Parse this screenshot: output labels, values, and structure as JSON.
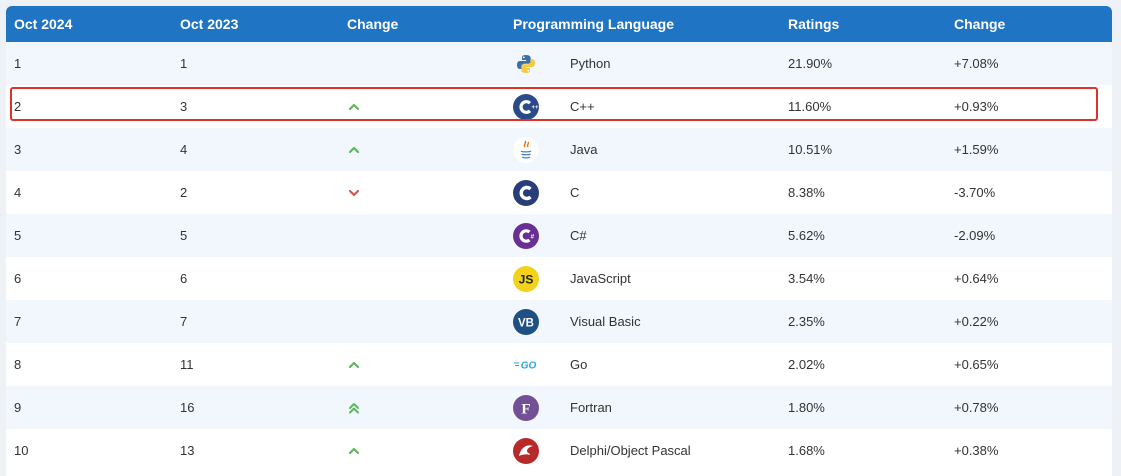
{
  "header": {
    "col_now": "Oct 2024",
    "col_prev": "Oct 2023",
    "col_change": "Change",
    "col_language": "Programming Language",
    "col_ratings": "Ratings",
    "col_change2": "Change"
  },
  "rows": [
    {
      "now": "1",
      "prev": "1",
      "trend": "none",
      "icon": "python-logo-icon",
      "language": "Python",
      "rating": "21.90%",
      "change": "+7.08%"
    },
    {
      "now": "2",
      "prev": "3",
      "trend": "up",
      "icon": "cpp-logo-icon",
      "language": "C++",
      "rating": "11.60%",
      "change": "+0.93%"
    },
    {
      "now": "3",
      "prev": "4",
      "trend": "up",
      "icon": "java-logo-icon",
      "language": "Java",
      "rating": "10.51%",
      "change": "+1.59%"
    },
    {
      "now": "4",
      "prev": "2",
      "trend": "down",
      "icon": "c-logo-icon",
      "language": "C",
      "rating": "8.38%",
      "change": "-3.70%"
    },
    {
      "now": "5",
      "prev": "5",
      "trend": "none",
      "icon": "csharp-logo-icon",
      "language": "C#",
      "rating": "5.62%",
      "change": "-2.09%"
    },
    {
      "now": "6",
      "prev": "6",
      "trend": "none",
      "icon": "javascript-logo-icon",
      "language": "JavaScript",
      "rating": "3.54%",
      "change": "+0.64%"
    },
    {
      "now": "7",
      "prev": "7",
      "trend": "none",
      "icon": "visual-basic-logo-icon",
      "language": "Visual Basic",
      "rating": "2.35%",
      "change": "+0.22%"
    },
    {
      "now": "8",
      "prev": "11",
      "trend": "up",
      "icon": "go-logo-icon",
      "language": "Go",
      "rating": "2.02%",
      "change": "+0.65%"
    },
    {
      "now": "9",
      "prev": "16",
      "trend": "double-up",
      "icon": "fortran-logo-icon",
      "language": "Fortran",
      "rating": "1.80%",
      "change": "+0.78%"
    },
    {
      "now": "10",
      "prev": "13",
      "trend": "up",
      "icon": "delphi-logo-icon",
      "language": "Delphi/Object Pascal",
      "rating": "1.68%",
      "change": "+0.38%"
    }
  ],
  "logo_text": {
    "javascript": "JS",
    "visual_basic": "VB",
    "go": "GO",
    "fortran": "F"
  },
  "colors": {
    "header_bg": "#1f74c4",
    "trend_up": "#5cb85c",
    "trend_down": "#d9534f",
    "highlight_border": "#e0302a"
  },
  "highlighted_row": "C++"
}
